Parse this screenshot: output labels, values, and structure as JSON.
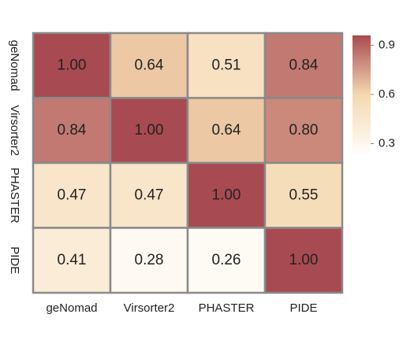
{
  "chart_data": {
    "type": "heatmap",
    "x_categories": [
      "geNomad",
      "Virsorter2",
      "PHASTER",
      "PIDE"
    ],
    "y_categories": [
      "geNomad",
      "Virsorter2",
      "PHASTER",
      "PIDE"
    ],
    "values": [
      [
        1.0,
        0.64,
        0.51,
        0.84
      ],
      [
        0.84,
        1.0,
        0.64,
        0.8
      ],
      [
        0.47,
        0.47,
        1.0,
        0.55
      ],
      [
        0.41,
        0.28,
        0.26,
        1.0
      ]
    ],
    "value_labels": [
      [
        "1.00",
        "0.64",
        "0.51",
        "0.84"
      ],
      [
        "0.84",
        "1.00",
        "0.64",
        "0.80"
      ],
      [
        "0.47",
        "0.47",
        "1.00",
        "0.55"
      ],
      [
        "0.41",
        "0.28",
        "0.26",
        "1.00"
      ]
    ],
    "colorscale": [
      "#fffdf9",
      "#f4d8b0",
      "#a84a51"
    ],
    "clim": [
      0.24,
      0.96
    ],
    "cticks": [
      0.9,
      0.6,
      0.3
    ]
  }
}
